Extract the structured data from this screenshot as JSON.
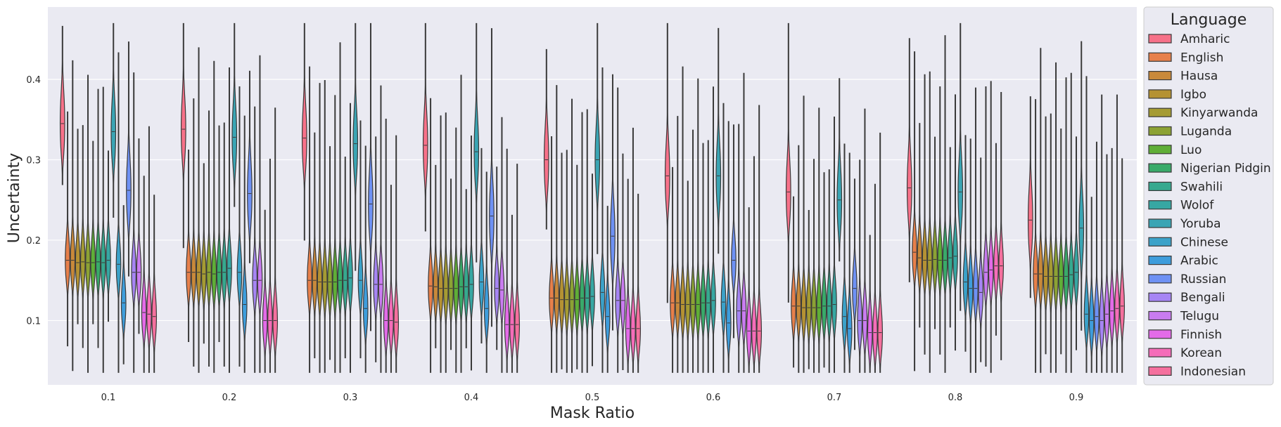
{
  "chart_data": {
    "type": "violin",
    "xlabel": "Mask Ratio",
    "ylabel": "Uncertainty",
    "ylim": [
      0.02,
      0.49
    ],
    "yticks": [
      0.1,
      0.2,
      0.3,
      0.4
    ],
    "ytick_labels": [
      "0.1",
      "0.2",
      "0.3",
      "0.4"
    ],
    "categories": [
      "0.1",
      "0.2",
      "0.3",
      "0.4",
      "0.5",
      "0.6",
      "0.7",
      "0.8",
      "0.9"
    ],
    "grid": true,
    "legend": {
      "title": "Language",
      "placement": "outside-right",
      "entries": [
        "Amharic",
        "English",
        "Hausa",
        "Igbo",
        "Kinyarwanda",
        "Luganda",
        "Luo",
        "Nigerian Pidgin",
        "Swahili",
        "Wolof",
        "Yoruba",
        "Chinese",
        "Arabic",
        "Russian",
        "Bengali",
        "Telugu",
        "Finnish",
        "Korean",
        "Indonesian"
      ]
    },
    "colors": [
      "#f77189",
      "#e7804b",
      "#c9893a",
      "#b59233",
      "#a59b33",
      "#8ca234",
      "#5fae37",
      "#39aa6a",
      "#36a98f",
      "#37a7a3",
      "#3aa5b4",
      "#3ba2c9",
      "#3e9ddc",
      "#6e91f4",
      "#a685f4",
      "#c97cf0",
      "#e36be8",
      "#f56db9",
      "#f5709e"
    ],
    "medians": [
      [
        0.345,
        0.175,
        0.175,
        0.172,
        0.173,
        0.172,
        0.172,
        0.173,
        0.172,
        0.175,
        0.335,
        0.17,
        0.122,
        0.262,
        0.16,
        0.16,
        0.11,
        0.108,
        0.105
      ],
      [
        0.338,
        0.16,
        0.16,
        0.16,
        0.158,
        0.16,
        0.158,
        0.16,
        0.16,
        0.165,
        0.328,
        0.16,
        0.12,
        0.258,
        0.15,
        0.15,
        0.1,
        0.1,
        0.1
      ],
      [
        0.327,
        0.15,
        0.15,
        0.148,
        0.148,
        0.148,
        0.148,
        0.15,
        0.15,
        0.153,
        0.32,
        0.15,
        0.115,
        0.245,
        0.145,
        0.145,
        0.1,
        0.1,
        0.098
      ],
      [
        0.318,
        0.143,
        0.142,
        0.14,
        0.14,
        0.14,
        0.14,
        0.142,
        0.142,
        0.145,
        0.31,
        0.148,
        0.115,
        0.23,
        0.14,
        0.138,
        0.095,
        0.095,
        0.095
      ],
      [
        0.3,
        0.128,
        0.128,
        0.126,
        0.126,
        0.126,
        0.126,
        0.128,
        0.128,
        0.13,
        0.3,
        0.135,
        0.105,
        0.205,
        0.125,
        0.125,
        0.09,
        0.09,
        0.09
      ],
      [
        0.28,
        0.122,
        0.122,
        0.12,
        0.12,
        0.12,
        0.12,
        0.122,
        0.122,
        0.125,
        0.28,
        0.123,
        0.097,
        0.175,
        0.112,
        0.112,
        0.087,
        0.087,
        0.087
      ],
      [
        0.26,
        0.118,
        0.118,
        0.116,
        0.116,
        0.116,
        0.116,
        0.118,
        0.118,
        0.12,
        0.25,
        0.105,
        0.09,
        0.14,
        0.1,
        0.1,
        0.085,
        0.085,
        0.085
      ],
      [
        0.265,
        0.185,
        0.178,
        0.175,
        0.175,
        0.176,
        0.175,
        0.175,
        0.178,
        0.18,
        0.26,
        0.148,
        0.14,
        0.14,
        0.135,
        0.16,
        0.163,
        0.168,
        0.168
      ],
      [
        0.225,
        0.158,
        0.158,
        0.155,
        0.155,
        0.155,
        0.155,
        0.155,
        0.157,
        0.16,
        0.215,
        0.108,
        0.1,
        0.105,
        0.1,
        0.108,
        0.112,
        0.115,
        0.118
      ]
    ]
  }
}
